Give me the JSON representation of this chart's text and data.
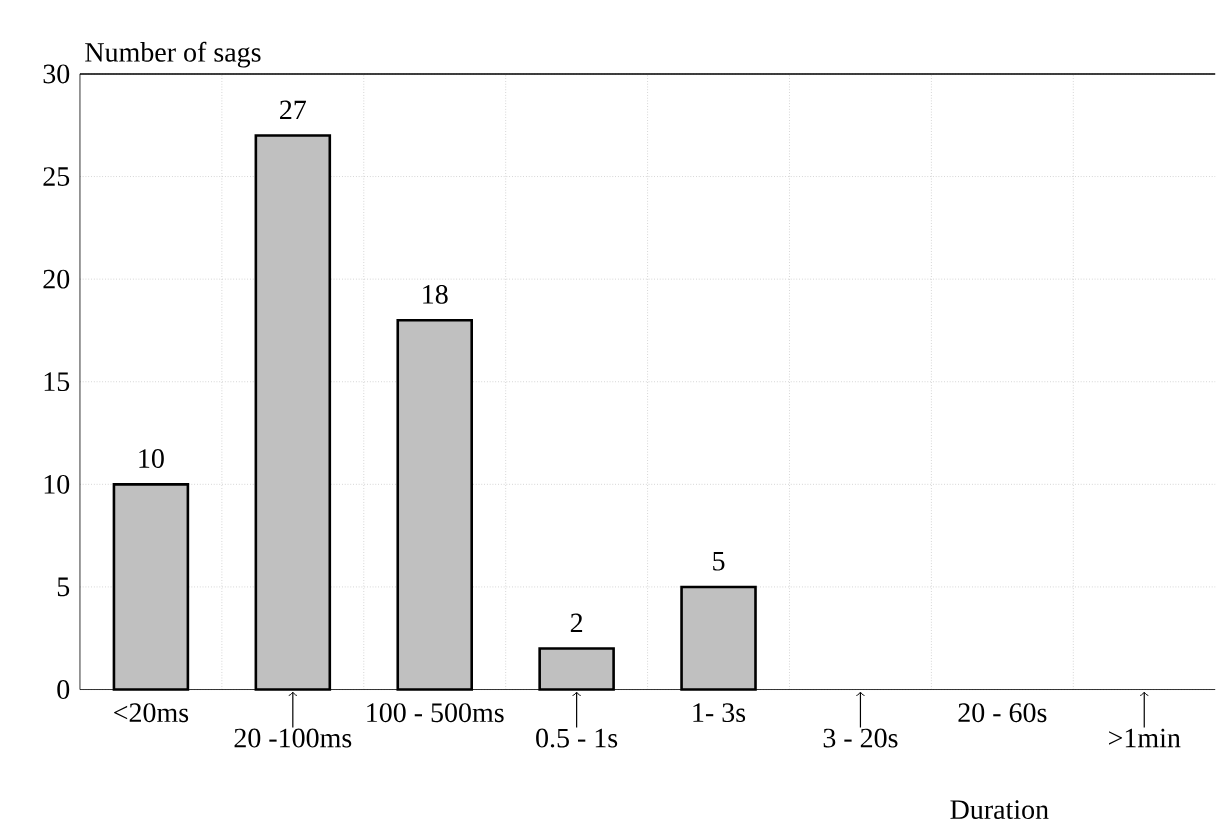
{
  "chart_data": {
    "type": "bar",
    "ylabel": "Number of sags",
    "xlabel": "Duration",
    "categories": [
      "<20ms",
      "20 -100ms",
      "100 - 500ms",
      "0.5 - 1s",
      "1- 3s",
      "3 - 20s",
      "20 - 60s",
      ">1min"
    ],
    "values": [
      10,
      27,
      18,
      2,
      5,
      null,
      null,
      null
    ],
    "value_labels": [
      "10",
      "27",
      "18",
      "2",
      "5",
      null,
      null,
      null
    ],
    "color": "#c0c0c0",
    "ylim": [
      0,
      30
    ],
    "yticks": [
      0,
      5,
      10,
      15,
      20,
      25,
      30
    ],
    "grid": true
  }
}
